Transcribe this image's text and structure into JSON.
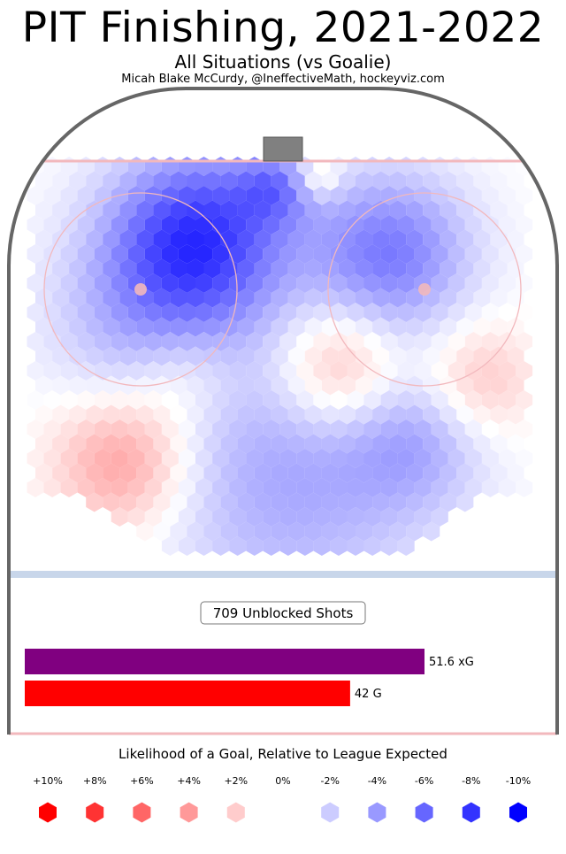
{
  "header": {
    "title": "PIT Finishing, 2021-2022",
    "subtitle": "All Situations (vs Goalie)",
    "byline": "Micah Blake McCurdy, @IneffectiveMath, hockeyviz.com"
  },
  "summary": {
    "shots_label": "709 Unblocked Shots"
  },
  "colors": {
    "rink_border": "#666666",
    "goal_line": "#f2b8bd",
    "blue_line": "#c8d6ea",
    "net": "#808080",
    "xg_bar": "#800080",
    "g_bar": "#ff0000",
    "positive": "#ff0000",
    "negative": "#0000ff"
  },
  "chart_data": {
    "type": "heatmap",
    "title": "PIT Finishing, 2021-2022",
    "bars": [
      {
        "label": "51.6 xG",
        "value": 51.6
      },
      {
        "label": "42 G",
        "value": 42
      }
    ],
    "legend": {
      "title": "Likelihood of a Goal, Relative to League Expected",
      "levels": [
        "+10%",
        "+8%",
        "+6%",
        "+4%",
        "+2%",
        "0%",
        "-2%",
        "-4%",
        "-6%",
        "-8%",
        "-10%"
      ],
      "values": [
        10,
        8,
        6,
        4,
        2,
        0,
        -2,
        -4,
        -6,
        -8,
        -10
      ]
    }
  }
}
